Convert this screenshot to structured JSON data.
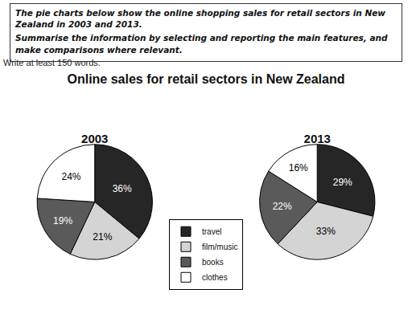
{
  "header": {
    "task": [
      "The pie charts below show the online shopping sales for retail sectors in New Zealand in 2003 and 2013.",
      "Summarise the information by selecting and reporting the main features, and make comparisons where relevant."
    ],
    "instruction": "Write at least 150 words."
  },
  "title": "Online sales for retail sectors in New Zealand",
  "chart_data": [
    {
      "type": "pie",
      "title": "2003",
      "categories": [
        "travel",
        "film/music",
        "books",
        "clothes"
      ],
      "values": [
        36,
        21,
        19,
        24
      ],
      "value_labels": [
        "36%",
        "21%",
        "19%",
        "24%"
      ],
      "colors": [
        "#262626",
        "#d4d4d4",
        "#5a5a5a",
        "#ffffff"
      ],
      "data_labels": true,
      "legend": "center"
    },
    {
      "type": "pie",
      "title": "2013",
      "categories": [
        "travel",
        "film/music",
        "books",
        "clothes"
      ],
      "values": [
        29,
        33,
        22,
        16
      ],
      "value_labels": [
        "29%",
        "33%",
        "22%",
        "16%"
      ],
      "colors": [
        "#262626",
        "#d4d4d4",
        "#5a5a5a",
        "#ffffff"
      ],
      "data_labels": true
    }
  ]
}
